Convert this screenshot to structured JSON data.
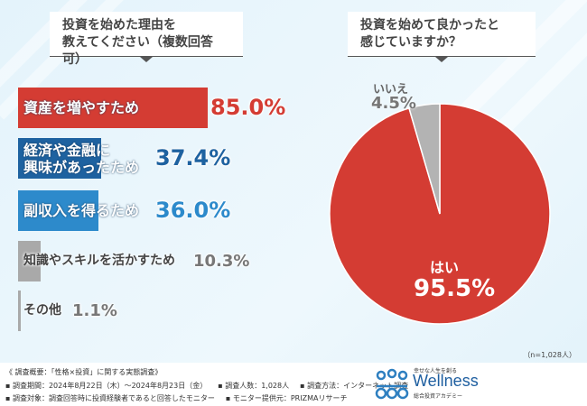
{
  "left_title": [
    "投資を始めた理由を",
    "教えてください（複数回答可）"
  ],
  "right_title": [
    "投資を始めて良かったと",
    "感じていますか？"
  ],
  "chart_data": [
    {
      "type": "bar",
      "orientation": "horizontal",
      "categories": [
        "資産を増やすため",
        "経済や金融に興味があったため",
        "副収入を得るため",
        "知識やスキルを活かすため",
        "その他"
      ],
      "values": [
        85.0,
        37.4,
        36.0,
        10.3,
        1.1
      ],
      "value_labels": [
        "85.0%",
        "37.4%",
        "36.0%",
        "10.3%",
        "1.1%"
      ],
      "colors": [
        "#d43c33",
        "#1e62a0",
        "#2d8acb",
        "#a9a9a9",
        "#a9a9a9"
      ]
    },
    {
      "type": "pie",
      "categories": [
        "はい",
        "いいえ"
      ],
      "values": [
        95.5,
        4.5
      ],
      "value_labels": [
        "95.5%",
        "4.5%"
      ],
      "colors": [
        "#d43c33",
        "#b3b3b3"
      ]
    }
  ],
  "bar_label_lines": [
    [
      "資産を増やすため"
    ],
    [
      "経済や金融に",
      "興味があったため"
    ],
    [
      "副収入を得るため"
    ],
    [
      "知識やスキルを活かすため"
    ],
    [
      "その他"
    ]
  ],
  "sample": "（n=1,028人）",
  "footer": {
    "summary": "《 調査概要：「性格×投資」に関する実態調査》",
    "period": "▪ 調査期間：2024年8月22日（木）～2024年8月23日（金）",
    "count": "▪ 調査人数：1,028人",
    "method": "▪ 調査方法：インターネット調査",
    "target": "▪ 調査対象：調査回答時に投資経験者であると回答したモニター",
    "provider": "▪ モニター提供元：PRIZMAリサーチ"
  },
  "logo": {
    "tagline": "幸せな人生を創る",
    "name": "Wellness",
    "sub": "総合投資アカデミー"
  }
}
